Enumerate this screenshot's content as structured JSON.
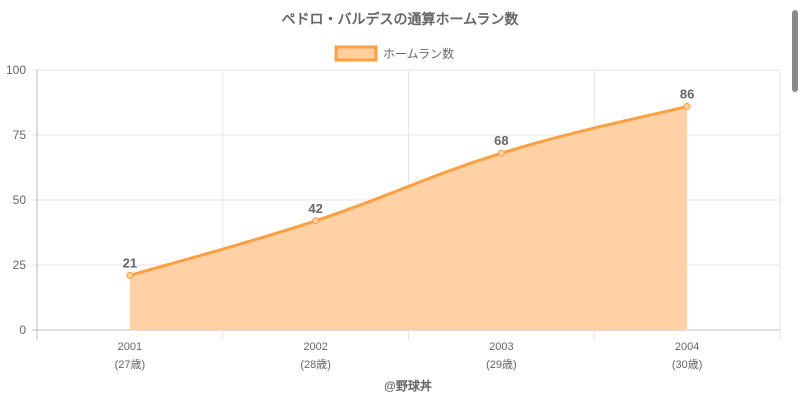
{
  "chart_data": {
    "type": "line",
    "title": "ペドロ・バルデスの通算ホームラン数",
    "legend": {
      "label": "ホームラン数",
      "position": "top"
    },
    "categories": [
      "2001",
      "2002",
      "2003",
      "2004"
    ],
    "sublabels": [
      "(27歳)",
      "(28歳)",
      "(29歳)",
      "(30歳)"
    ],
    "series": [
      {
        "name": "ホームラン数",
        "values": [
          21,
          42,
          68,
          86
        ]
      }
    ],
    "ylim": [
      0,
      100
    ],
    "yticks": [
      "0",
      "25",
      "50",
      "75",
      "100"
    ],
    "fill": true,
    "grid": true,
    "colors": {
      "line": "#ff9f40",
      "fill": "#ffcf9f"
    },
    "footer": "@野球丼"
  }
}
